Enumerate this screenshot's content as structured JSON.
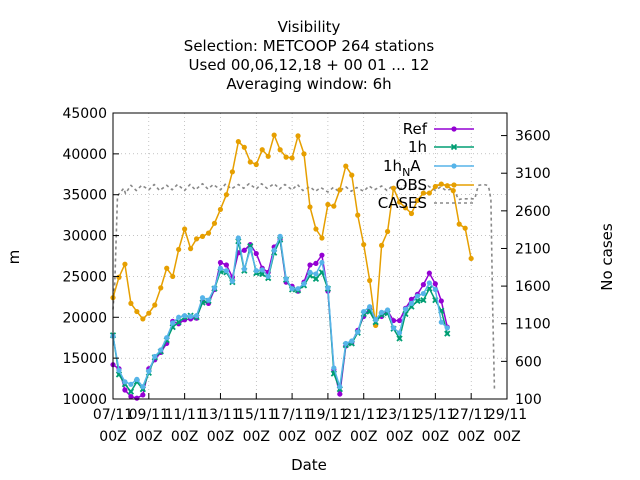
{
  "chart_data": {
    "type": "line",
    "title": "Visibility",
    "subtitle_lines": [
      "Selection: METCOOP    264 stations",
      "Used  00,06,12,18 + 00 01 ... 12",
      "Averaging window:  6h"
    ],
    "xlabel": "Date",
    "ylabel": "m",
    "y2label": "No cases",
    "xlim": [
      0,
      22
    ],
    "ylim": [
      10000,
      45000
    ],
    "y2lim": [
      100,
      3900
    ],
    "yticks": [
      10000,
      15000,
      20000,
      25000,
      30000,
      35000,
      40000,
      45000
    ],
    "y2ticks": [
      100,
      600,
      1100,
      1600,
      2100,
      2600,
      3100,
      3600
    ],
    "xtick_values": [
      0,
      2,
      4,
      6,
      8,
      10,
      12,
      14,
      16,
      18,
      20,
      22
    ],
    "xtick_labels": [
      [
        "07/11",
        "00Z"
      ],
      [
        "09/11",
        "00Z"
      ],
      [
        "11/11",
        "00Z"
      ],
      [
        "13/11",
        "00Z"
      ],
      [
        "15/11",
        "00Z"
      ],
      [
        "17/11",
        "00Z"
      ],
      [
        "19/11",
        "00Z"
      ],
      [
        "21/11",
        "00Z"
      ],
      [
        "23/11",
        "00Z"
      ],
      [
        "25/11",
        "00Z"
      ],
      [
        "27/11",
        "00Z"
      ],
      [
        "29/11",
        "00Z"
      ]
    ],
    "legend_position": "top-right",
    "grid": true,
    "series": [
      {
        "name": "Ref",
        "color": "#9400d3",
        "marker": "circle",
        "axis": "y",
        "values": [
          14200,
          13700,
          11100,
          10300,
          10100,
          10500,
          13700,
          14800,
          15700,
          16800,
          19500,
          19200,
          19700,
          19800,
          19900,
          21900,
          21700,
          23400,
          26700,
          26400,
          24900,
          27900,
          28200,
          28900,
          27800,
          26000,
          25500,
          28600,
          29500,
          24300,
          23800,
          23200,
          24300,
          26400,
          26600,
          27600,
          23200,
          13600,
          10600,
          16500,
          16900,
          18400,
          20100,
          21100,
          19700,
          20100,
          20800,
          19600,
          19600,
          21100,
          22200,
          22800,
          24000,
          25400,
          24100,
          22000,
          18800
        ]
      },
      {
        "name": "1h",
        "color": "#009e73",
        "marker": "cross",
        "axis": "y",
        "values": [
          17800,
          13000,
          11800,
          10900,
          12100,
          11200,
          13200,
          15100,
          15800,
          17200,
          18800,
          19400,
          20000,
          20200,
          20000,
          21800,
          22000,
          23500,
          25600,
          25500,
          24300,
          29300,
          25700,
          28700,
          25400,
          25300,
          24800,
          27900,
          29500,
          24600,
          23400,
          23300,
          23900,
          25100,
          24700,
          25500,
          23500,
          13100,
          11200,
          16600,
          16800,
          18100,
          20400,
          20700,
          19400,
          20300,
          20500,
          18600,
          17400,
          20400,
          21300,
          22000,
          22100,
          23500,
          22100,
          20800,
          18000
        ]
      },
      {
        "name": "1h_NA",
        "color": "#56b4e9",
        "marker": "circle",
        "axis": "y",
        "values": [
          17700,
          13500,
          12100,
          11800,
          12400,
          11500,
          13400,
          15200,
          16000,
          17500,
          19300,
          20000,
          20200,
          20100,
          20200,
          22400,
          22100,
          23600,
          26000,
          25700,
          24400,
          29700,
          25900,
          28300,
          25700,
          25800,
          25000,
          28200,
          29900,
          24700,
          23500,
          23500,
          24100,
          25500,
          25300,
          26700,
          23600,
          13800,
          11500,
          16800,
          17100,
          18200,
          20700,
          21300,
          19700,
          20600,
          20900,
          18700,
          18100,
          21000,
          21700,
          22600,
          22900,
          24200,
          23400,
          19400,
          18700
        ]
      },
      {
        "name": "OBS",
        "color": "#e69f00",
        "marker": "circle",
        "axis": "y",
        "values": [
          22400,
          24900,
          26500,
          21700,
          20700,
          19800,
          20500,
          21500,
          23600,
          26000,
          25000,
          28300,
          30800,
          28400,
          29600,
          29900,
          30300,
          31500,
          33200,
          35000,
          37800,
          41500,
          40800,
          39000,
          38700,
          40500,
          39700,
          42300,
          40500,
          39600,
          39500,
          42200,
          40000,
          33500,
          30800,
          29700,
          33800,
          33600,
          35600,
          38500,
          37400,
          32500,
          28900,
          24500,
          19000,
          28800,
          30500,
          35800,
          34100,
          33400,
          32700,
          34300,
          35200,
          35200,
          36000,
          36300,
          36100,
          35500,
          31400,
          30900,
          27200
        ]
      },
      {
        "name": "CASES",
        "color": "#888888",
        "dash": true,
        "axis": "y2",
        "points": [
          [
            0,
            1290
          ],
          [
            0.1,
            1650
          ],
          [
            0.25,
            2800
          ],
          [
            0.6,
            2900
          ],
          [
            0.7,
            2830
          ],
          [
            1.0,
            2940
          ],
          [
            1.3,
            2870
          ],
          [
            1.6,
            2940
          ],
          [
            2.0,
            2880
          ],
          [
            2.3,
            2950
          ],
          [
            2.6,
            2870
          ],
          [
            3.0,
            2940
          ],
          [
            3.3,
            2880
          ],
          [
            3.6,
            2950
          ],
          [
            4.0,
            2870
          ],
          [
            4.3,
            2950
          ],
          [
            4.6,
            2880
          ],
          [
            5.0,
            2960
          ],
          [
            5.3,
            2890
          ],
          [
            5.6,
            2950
          ],
          [
            6.0,
            2880
          ],
          [
            6.3,
            2960
          ],
          [
            6.6,
            2890
          ],
          [
            7.0,
            2950
          ],
          [
            7.3,
            2900
          ],
          [
            7.6,
            2960
          ],
          [
            8.0,
            2890
          ],
          [
            8.3,
            2960
          ],
          [
            8.6,
            2900
          ],
          [
            9.0,
            2960
          ],
          [
            9.3,
            2890
          ],
          [
            9.6,
            2950
          ],
          [
            10.0,
            2880
          ],
          [
            10.3,
            2950
          ],
          [
            10.6,
            2870
          ],
          [
            11.0,
            2920
          ],
          [
            11.3,
            2860
          ],
          [
            11.6,
            2910
          ],
          [
            12.0,
            2850
          ],
          [
            12.3,
            2910
          ],
          [
            12.6,
            2860
          ],
          [
            13.0,
            2920
          ],
          [
            13.3,
            2860
          ],
          [
            13.6,
            2910
          ],
          [
            14.0,
            2860
          ],
          [
            14.3,
            2930
          ],
          [
            14.6,
            2880
          ],
          [
            15.0,
            2930
          ],
          [
            15.3,
            2870
          ],
          [
            15.6,
            2930
          ],
          [
            16.0,
            2880
          ],
          [
            16.3,
            2940
          ],
          [
            16.6,
            2880
          ],
          [
            17.0,
            2930
          ],
          [
            17.3,
            2870
          ],
          [
            17.6,
            2930
          ],
          [
            18.0,
            2870
          ],
          [
            18.3,
            2920
          ],
          [
            18.6,
            2870
          ],
          [
            19.0,
            2900
          ],
          [
            19.3,
            2750
          ],
          [
            19.5,
            2760
          ],
          [
            19.8,
            2760
          ],
          [
            20.2,
            2760
          ],
          [
            20.4,
            2940
          ],
          [
            20.7,
            2950
          ],
          [
            20.9,
            2940
          ],
          [
            21.0,
            2890
          ],
          [
            21.1,
            2750
          ],
          [
            21.2,
            1300
          ],
          [
            21.3,
            200
          ]
        ]
      }
    ]
  }
}
